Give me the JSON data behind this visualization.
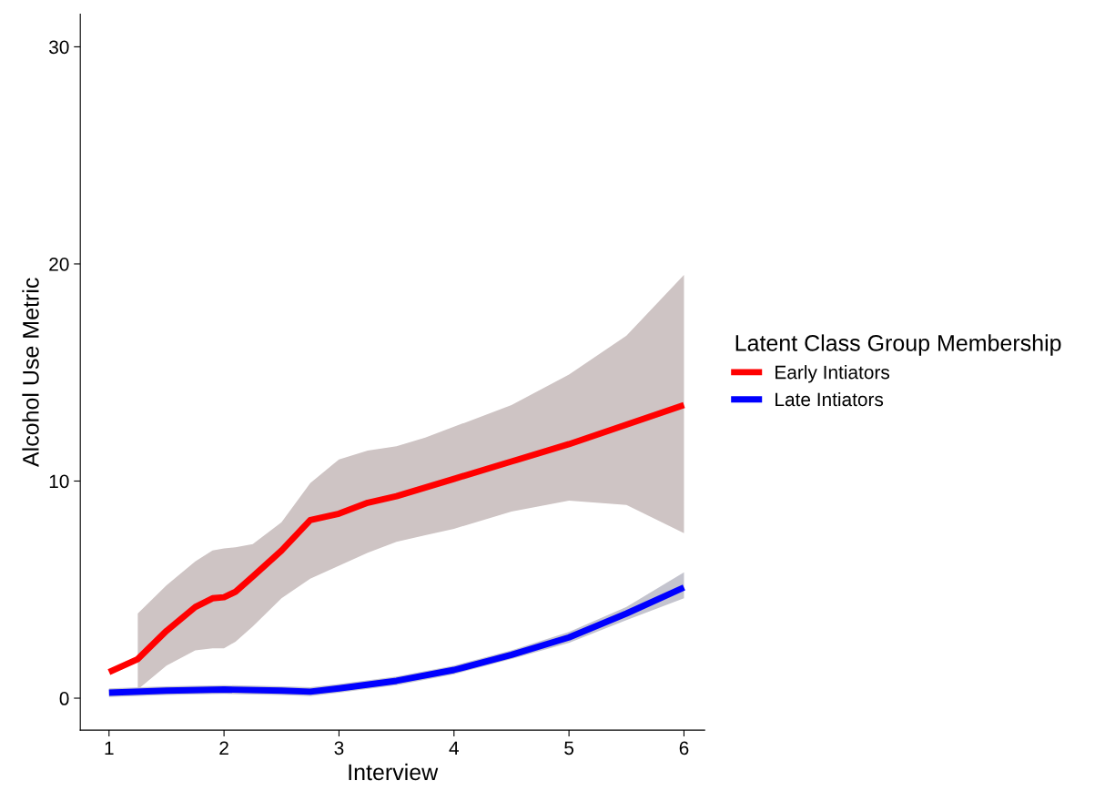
{
  "chart_data": {
    "type": "line",
    "xlabel": "Interview",
    "ylabel": "Alcohol Use Metric",
    "legend_title": "Latent Class Group Membership",
    "legend": "right",
    "xlim": [
      0.75,
      6.18
    ],
    "ylim": [
      -1.47,
      31.5
    ],
    "xticks": [
      1,
      2,
      3,
      4,
      5,
      6
    ],
    "yticks": [
      0,
      10,
      20,
      30
    ],
    "grid": false,
    "marker": "none",
    "line_style": "solid",
    "series": [
      {
        "name": "Early Intiators",
        "color": "#ff0000",
        "x": [
          1,
          1.25,
          1.5,
          1.75,
          1.9,
          2,
          2.1,
          2.25,
          2.5,
          2.75,
          3,
          3.25,
          3.5,
          3.75,
          4,
          4.5,
          5,
          5.5,
          6
        ],
        "values": [
          1.2,
          1.8,
          3.1,
          4.2,
          4.6,
          4.65,
          4.9,
          5.6,
          6.8,
          8.2,
          8.5,
          9.0,
          9.3,
          9.7,
          10.1,
          10.9,
          11.7,
          12.6,
          13.5
        ],
        "lower": [
          null,
          0.4,
          1.5,
          2.2,
          2.3,
          2.3,
          2.6,
          3.3,
          4.6,
          5.5,
          6.1,
          6.7,
          7.2,
          7.5,
          7.8,
          8.6,
          9.1,
          8.9,
          7.6
        ],
        "upper": [
          null,
          3.9,
          5.2,
          6.3,
          6.8,
          6.9,
          6.95,
          7.1,
          8.1,
          9.9,
          11.0,
          11.4,
          11.6,
          12.0,
          12.5,
          13.5,
          14.9,
          16.7,
          19.5
        ]
      },
      {
        "name": "Late Intiators",
        "color": "#0000ff",
        "x": [
          1,
          1.5,
          2,
          2.5,
          2.75,
          3,
          3.5,
          4,
          4.5,
          5,
          5.5,
          6
        ],
        "values": [
          0.25,
          0.35,
          0.4,
          0.35,
          0.3,
          0.45,
          0.8,
          1.3,
          2.0,
          2.8,
          3.9,
          5.1
        ],
        "lower": [
          0.05,
          0.15,
          0.2,
          0.15,
          0.1,
          0.25,
          0.6,
          1.1,
          1.8,
          2.55,
          3.6,
          4.6
        ],
        "upper": [
          0.45,
          0.55,
          0.6,
          0.55,
          0.5,
          0.65,
          1.0,
          1.5,
          2.2,
          3.05,
          4.2,
          5.8
        ]
      }
    ]
  }
}
